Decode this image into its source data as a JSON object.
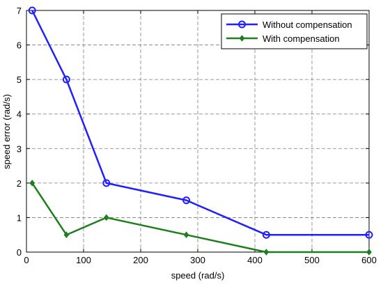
{
  "chart_data": {
    "type": "line",
    "title": "",
    "xlabel": "speed (rad/s)",
    "ylabel": "speed error (rad/s)",
    "xlim": [
      0,
      600
    ],
    "ylim": [
      0,
      7
    ],
    "xticks": [
      0,
      100,
      200,
      300,
      400,
      500,
      600
    ],
    "yticks": [
      0,
      1,
      2,
      3,
      4,
      5,
      6,
      7
    ],
    "grid": true,
    "legend_position": "top-right",
    "series": [
      {
        "name": "Without compensation",
        "color": "#1f1fff",
        "marker": "circle",
        "x": [
          10,
          70,
          140,
          280,
          420,
          600
        ],
        "y": [
          7,
          5,
          2,
          1.5,
          0.5,
          0.5
        ]
      },
      {
        "name": "With compensation",
        "color": "#1e7d1e",
        "marker": "diamond",
        "x": [
          10,
          70,
          140,
          280,
          420,
          600
        ],
        "y": [
          2,
          0.5,
          1,
          0.5,
          0,
          0
        ]
      }
    ]
  }
}
